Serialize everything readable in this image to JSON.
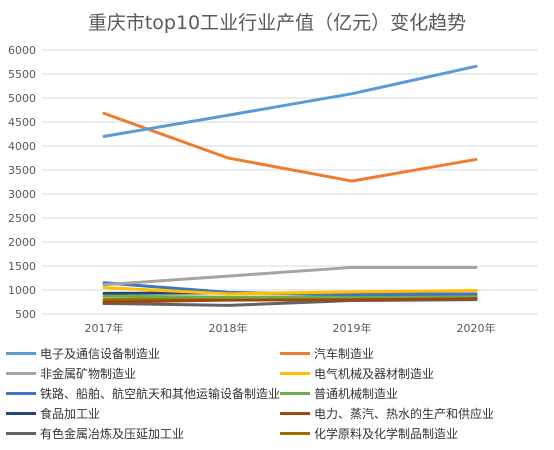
{
  "chart_data": {
    "type": "line",
    "title": "重庆市top10工业行业产值（亿元）变化趋势",
    "xlabel": "",
    "ylabel": "",
    "x": [
      "2017年",
      "2018年",
      "2019年",
      "2020年"
    ],
    "ylim": [
      500,
      6000
    ],
    "yticks": [
      500,
      1000,
      1500,
      2000,
      2500,
      3000,
      3500,
      4000,
      4500,
      5000,
      5500,
      6000
    ],
    "grid": true,
    "legend_position": "bottom",
    "series": [
      {
        "name": "电子及通信设备制造业",
        "color": "#5b9bd5",
        "values": [
          4200,
          4640,
          5090,
          5660
        ]
      },
      {
        "name": "汽车制造业",
        "color": "#ed7d31",
        "values": [
          4680,
          3750,
          3270,
          3720
        ]
      },
      {
        "name": "非金属矿物制造业",
        "color": "#a5a5a5",
        "values": [
          1110,
          1290,
          1470,
          1470
        ]
      },
      {
        "name": "电气机械及器材制造业",
        "color": "#ffc000",
        "values": [
          1050,
          920,
          960,
          990
        ]
      },
      {
        "name": "铁路、船舶、航空航天和其他运输设备制造业",
        "color": "#4472c4",
        "values": [
          1150,
          950,
          900,
          920
        ]
      },
      {
        "name": "普通机械制造业",
        "color": "#70ad47",
        "values": [
          870,
          850,
          860,
          880
        ]
      },
      {
        "name": "食品加工业",
        "color": "#264478",
        "values": [
          930,
          940,
          920,
          910
        ]
      },
      {
        "name": "电力、蒸汽、热水的生产和供应业",
        "color": "#9e480e",
        "values": [
          750,
          790,
          800,
          820
        ]
      },
      {
        "name": "有色金属冶炼及压延加工业",
        "color": "#636363",
        "values": [
          720,
          680,
          780,
          800
        ]
      },
      {
        "name": "化学原料及化学制品制造业",
        "color": "#997300",
        "values": [
          800,
          810,
          820,
          850
        ]
      }
    ]
  }
}
